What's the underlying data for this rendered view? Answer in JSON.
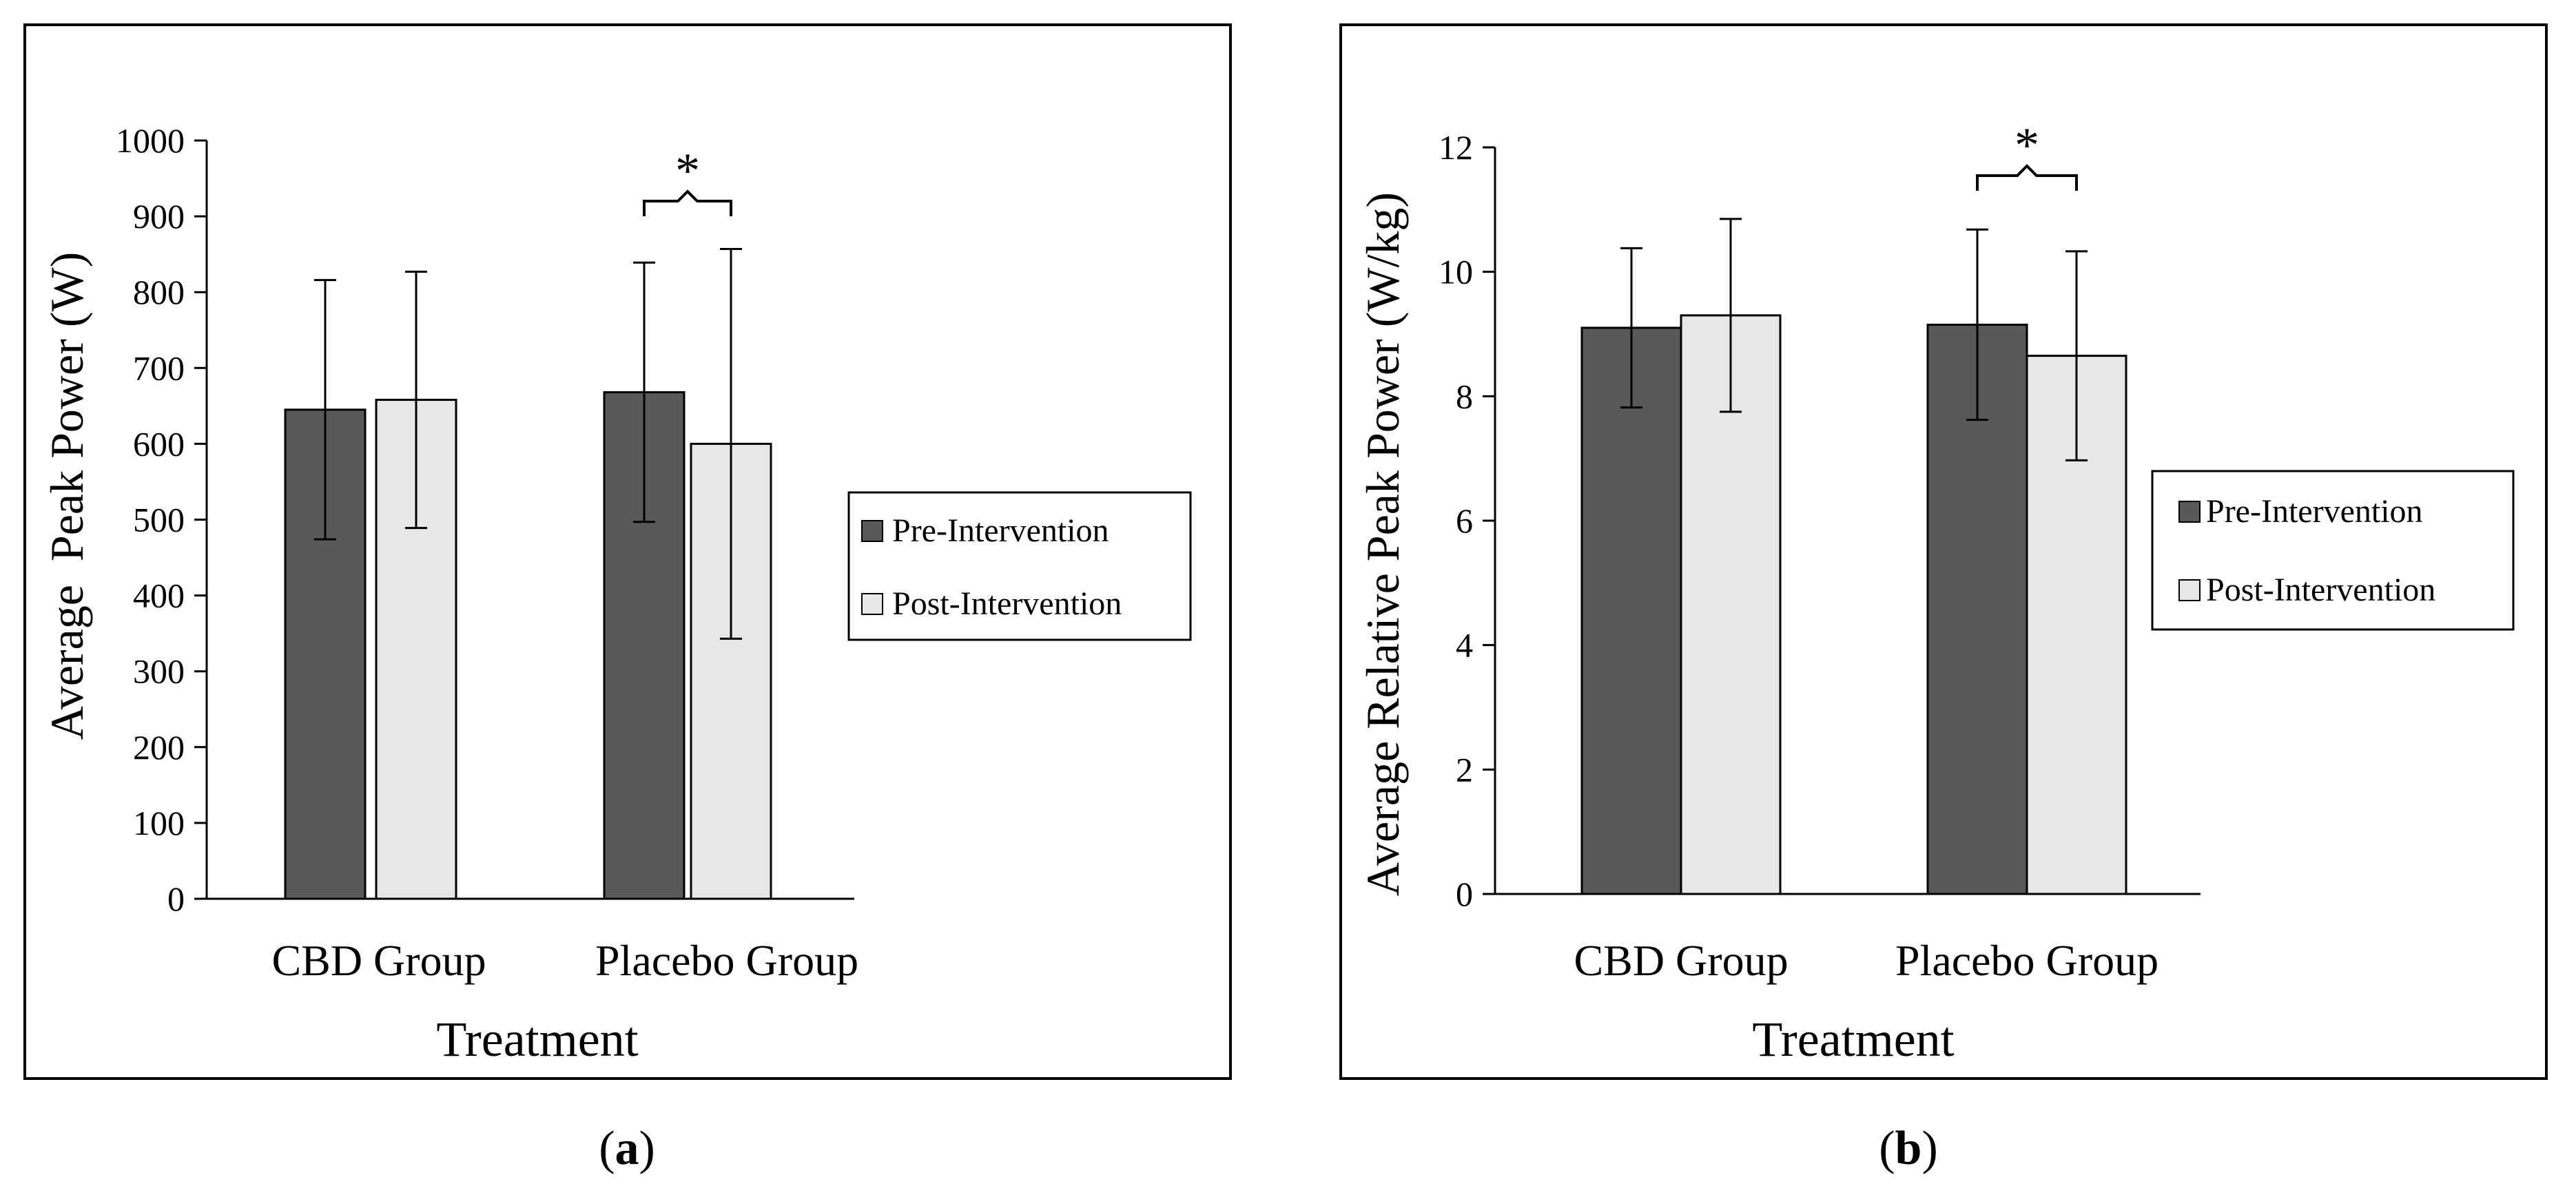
{
  "colors": {
    "pre": "#595959",
    "post": "#e7e7e7",
    "stroke": "#000000"
  },
  "chart_data": [
    {
      "panel": "a",
      "panel_label": "a",
      "type": "bar",
      "title": "",
      "xlabel": "Treatment",
      "ylabel": "Average  Peak Power (W)",
      "categories": [
        "CBD Group",
        "Placebo Group"
      ],
      "ylim": [
        0,
        1000
      ],
      "yticks": [
        0,
        100,
        200,
        300,
        400,
        500,
        600,
        700,
        800,
        900,
        1000
      ],
      "grid": false,
      "legend_position": "right",
      "series": [
        {
          "name": "Pre-Intervention",
          "values": [
            645,
            668
          ],
          "errors": [
            171,
            171
          ]
        },
        {
          "name": "Post-Intervention",
          "values": [
            658,
            600
          ],
          "errors": [
            169,
            257
          ]
        }
      ],
      "annotations": [
        {
          "text": "*",
          "category": "Placebo Group",
          "type": "bracket"
        }
      ]
    },
    {
      "panel": "b",
      "panel_label": "b",
      "type": "bar",
      "title": "",
      "xlabel": "Treatment",
      "ylabel": "Average Relative Peak Power (W/kg)",
      "categories": [
        "CBD Group",
        "Placebo Group"
      ],
      "ylim": [
        0,
        12
      ],
      "yticks": [
        0,
        2,
        4,
        6,
        8,
        10,
        12
      ],
      "grid": false,
      "legend_position": "right",
      "series": [
        {
          "name": "Pre-Intervention",
          "values": [
            9.1,
            9.15
          ],
          "errors": [
            1.28,
            1.53
          ]
        },
        {
          "name": "Post-Intervention",
          "values": [
            9.3,
            8.65
          ],
          "errors": [
            1.55,
            1.68
          ]
        }
      ],
      "annotations": [
        {
          "text": "*",
          "category": "Placebo Group",
          "type": "bracket"
        }
      ]
    }
  ]
}
